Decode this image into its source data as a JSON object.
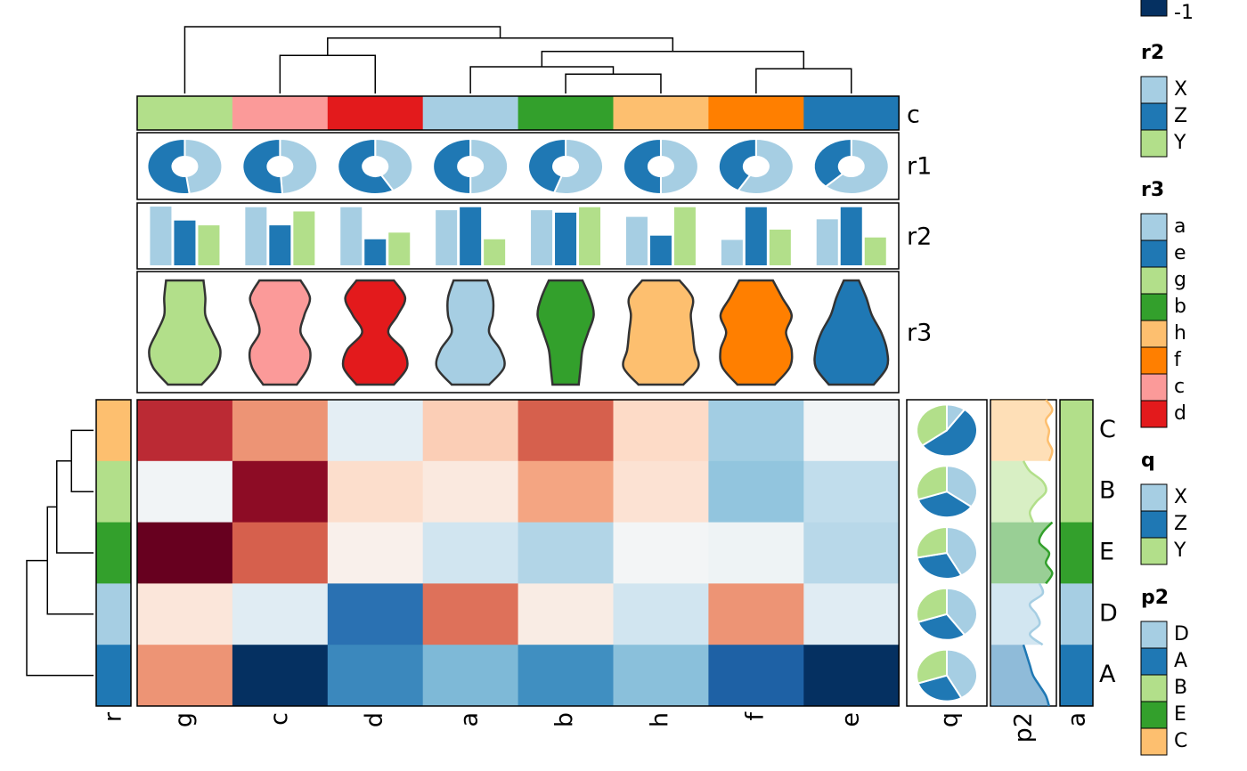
{
  "chart_data": {
    "type": "heatmap",
    "columns": [
      "g",
      "c",
      "d",
      "a",
      "b",
      "h",
      "f",
      "e"
    ],
    "rows": [
      "C",
      "B",
      "E",
      "D",
      "A"
    ],
    "values": [
      [
        0.75,
        0.45,
        -0.1,
        0.25,
        0.6,
        0.2,
        -0.35,
        -0.03
      ],
      [
        -0.03,
        0.9,
        0.18,
        0.1,
        0.4,
        0.15,
        -0.4,
        -0.25
      ],
      [
        1.0,
        0.6,
        0.05,
        -0.2,
        -0.3,
        -0.02,
        -0.05,
        -0.28
      ],
      [
        0.12,
        -0.12,
        -0.75,
        0.55,
        0.08,
        -0.2,
        0.45,
        -0.12
      ],
      [
        0.45,
        -1.0,
        -0.65,
        -0.45,
        -0.62,
        -0.42,
        -0.82,
        -1.0
      ]
    ],
    "zlim": [
      -1,
      1
    ],
    "zticks": [
      -1
    ],
    "colorscale": [
      "#053061",
      "#2166ac",
      "#4393c3",
      "#92c5de",
      "#d1e5f0",
      "#f7f7f7",
      "#fddbc7",
      "#f4a582",
      "#d6604d",
      "#b2182b",
      "#67001f"
    ],
    "column_dendrogram": [
      {
        "left": "b",
        "right": "h",
        "height": 0.29
      },
      {
        "left": "a",
        "right": 0,
        "height": 0.4
      },
      {
        "left": "f",
        "right": "e",
        "height": 0.37
      },
      {
        "left": 1,
        "right": 2,
        "height": 0.63
      },
      {
        "left": "c",
        "right": "d",
        "height": 0.57
      },
      {
        "left": 4,
        "right": 3,
        "height": 0.83
      },
      {
        "left": "g",
        "right": 5,
        "height": 1.0
      }
    ],
    "row_dendrogram": [
      {
        "left": "C",
        "right": "B",
        "height": 0.33
      },
      {
        "left": 0,
        "right": "E",
        "height": 0.55
      },
      {
        "left": 1,
        "right": "D",
        "height": 0.69
      },
      {
        "left": 2,
        "right": "A",
        "height": 1.0
      }
    ],
    "top_annotations": {
      "c": {
        "name": "c"
      },
      "r1": {
        "name": "r1",
        "colors": [
          "#a6cee3",
          "#1f78b4"
        ],
        "values": [
          [
            0.48,
            0.52
          ],
          [
            0.49,
            0.51
          ],
          [
            0.42,
            0.58
          ],
          [
            0.5,
            0.5
          ],
          [
            0.55,
            0.45
          ],
          [
            0.5,
            0.5
          ],
          [
            0.58,
            0.42
          ],
          [
            0.62,
            0.38
          ]
        ]
      },
      "r2": {
        "name": "r2",
        "ylim": [
          0,
          1
        ],
        "series": [
          [
            0.97,
            0.96,
            0.96,
            0.91,
            0.91,
            0.8,
            0.42,
            0.76
          ],
          [
            0.74,
            0.66,
            0.43,
            0.96,
            0.87,
            0.49,
            0.96,
            0.96
          ],
          [
            0.66,
            0.89,
            0.54,
            0.43,
            0.96,
            0.96,
            0.59,
            0.46
          ]
        ]
      },
      "r3": {
        "name": "r3",
        "densities": [
          [
            0.5,
            0.55,
            0.55,
            0.75,
            0.95,
            0.85,
            0.45
          ],
          [
            0.55,
            0.8,
            0.65,
            0.55,
            0.8,
            0.75,
            0.45
          ],
          [
            0.5,
            0.8,
            0.6,
            0.35,
            0.75,
            0.85,
            0.5
          ],
          [
            0.45,
            0.6,
            0.6,
            0.5,
            0.8,
            0.9,
            0.5
          ],
          [
            0.45,
            0.65,
            0.75,
            0.6,
            0.45,
            0.4,
            0.35
          ],
          [
            0.5,
            0.85,
            0.8,
            0.85,
            0.9,
            1.0,
            0.6
          ],
          [
            0.45,
            0.7,
            0.95,
            0.8,
            0.95,
            0.9,
            0.5
          ],
          [
            0.2,
            0.4,
            0.55,
            0.8,
            0.95,
            0.95,
            0.6
          ]
        ]
      }
    },
    "right_annotations": {
      "q": {
        "name": "q",
        "values": [
          [
            0.1,
            0.55,
            0.35
          ],
          [
            0.35,
            0.35,
            0.3
          ],
          [
            0.42,
            0.3,
            0.28
          ],
          [
            0.4,
            0.3,
            0.3
          ],
          [
            0.42,
            0.28,
            0.3
          ]
        ]
      },
      "p2": {
        "name": "p2",
        "densities": [
          [
            0.85,
            0.95,
            0.85,
            0.9,
            0.88,
            0.95,
            0.9
          ],
          [
            0.5,
            0.6,
            0.8,
            0.85,
            0.7,
            0.6,
            0.65
          ],
          [
            0.95,
            0.8,
            0.75,
            0.9,
            0.85,
            0.95,
            0.85
          ],
          [
            0.75,
            0.8,
            0.6,
            0.7,
            0.75,
            0.6,
            0.8
          ],
          [
            0.5,
            0.55,
            0.6,
            0.65,
            0.75,
            0.85,
            0.9
          ]
        ]
      },
      "a": {
        "name": "a",
        "colors": [
          "#b2df8a",
          "#b2df8a",
          "#33a02c",
          "#a6cee3",
          "#1f78b4"
        ]
      }
    },
    "left_annotation": {
      "name": "r"
    },
    "legends": [
      {
        "title": "r2",
        "labels": [
          "X",
          "Z",
          "Y"
        ],
        "colors": [
          "#a6cee3",
          "#1f78b4",
          "#b2df8a"
        ]
      },
      {
        "title": "r3",
        "labels": [
          "a",
          "e",
          "g",
          "b",
          "h",
          "f",
          "c",
          "d"
        ],
        "colors": [
          "#a6cee3",
          "#1f78b4",
          "#b2df8a",
          "#33a02c",
          "#fdbf6f",
          "#ff7f00",
          "#fb9a99",
          "#e31a1c"
        ]
      },
      {
        "title": "q",
        "labels": [
          "X",
          "Z",
          "Y"
        ],
        "colors": [
          "#a6cee3",
          "#1f78b4",
          "#b2df8a"
        ]
      },
      {
        "title": "p2",
        "labels": [
          "D",
          "A",
          "B",
          "E",
          "C"
        ],
        "colors": [
          "#a6cee3",
          "#1f78b4",
          "#b2df8a",
          "#33a02c",
          "#fdbf6f"
        ]
      }
    ]
  }
}
